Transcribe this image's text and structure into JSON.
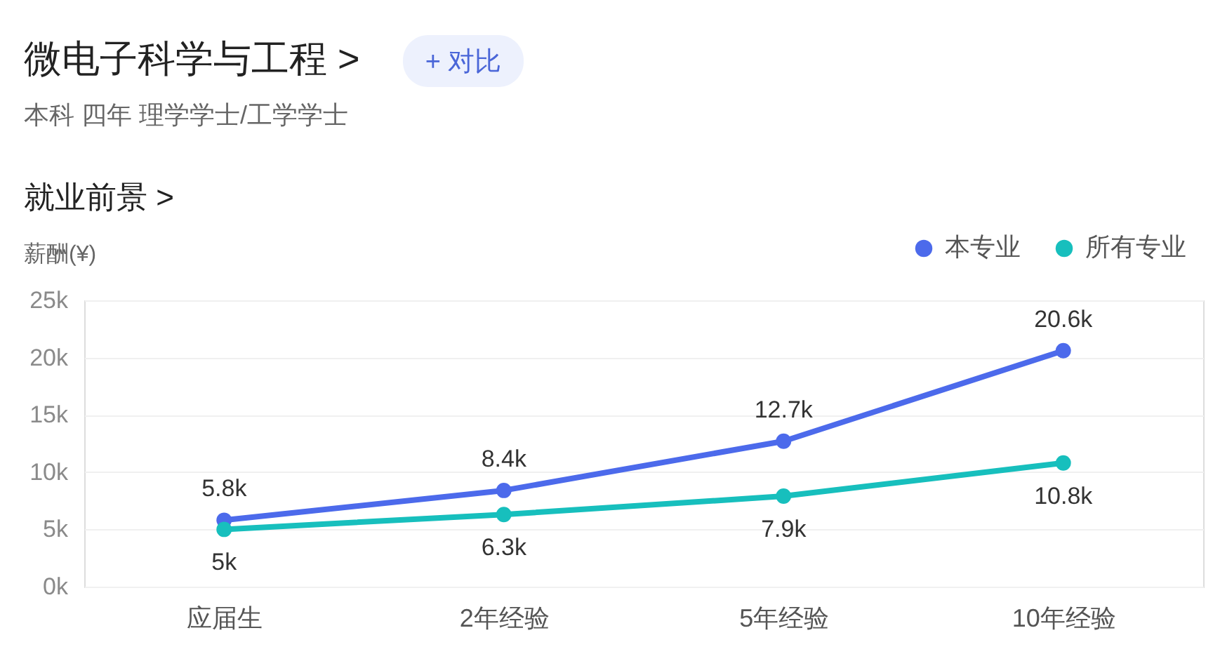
{
  "chart_data": {
    "type": "line",
    "title": "微电子科学与工程 >",
    "subtitle": "本科 四年 理学学士/工学学士",
    "ylabel": "薪酬(¥)",
    "annotations": [
      "+ 对比",
      "就业前景 >"
    ],
    "categories": [
      "应届生",
      "2年经验",
      "5年经验",
      "10年经验"
    ],
    "series": [
      {
        "name": "本专业",
        "color": "#4c6aeb",
        "values": [
          5800,
          8400,
          12700,
          20600
        ],
        "value_labels": [
          "5.8k",
          "8.4k",
          "12.7k",
          "20.6k"
        ]
      },
      {
        "name": "所有专业",
        "color": "#17bfbd",
        "values": [
          5000,
          6300,
          7900,
          10800
        ],
        "value_labels": [
          "5k",
          "6.3k",
          "7.9k",
          "10.8k"
        ]
      }
    ],
    "ylim": [
      0,
      25000
    ],
    "yticks": [
      {
        "value": 0,
        "label": "0k"
      },
      {
        "value": 5000,
        "label": "5k"
      },
      {
        "value": 10000,
        "label": "10k"
      },
      {
        "value": 15000,
        "label": "15k"
      },
      {
        "value": 20000,
        "label": "20k"
      },
      {
        "value": 25000,
        "label": "25k"
      }
    ],
    "grid": "y",
    "legend": "top right",
    "marker": "circle",
    "line_style": "solid"
  }
}
